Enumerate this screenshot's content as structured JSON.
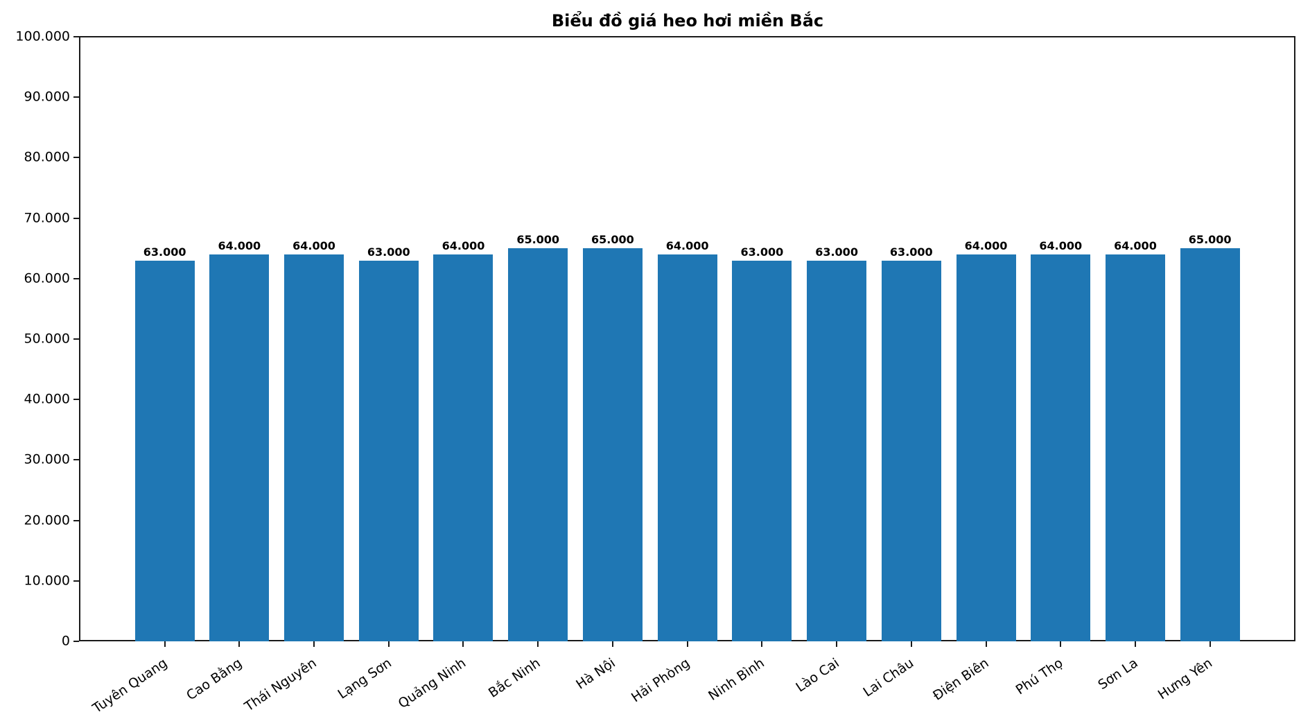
{
  "chart_data": {
    "type": "bar",
    "title": "Biểu đồ giá heo hơi miền Bắc",
    "categories": [
      "Tuyên Quang",
      "Cao Bằng",
      "Thái Nguyên",
      "Lạng Sơn",
      "Quảng Ninh",
      "Bắc Ninh",
      "Hà Nội",
      "Hải Phòng",
      "Ninh Bình",
      "Lào Cai",
      "Lai Châu",
      "Điện Biên",
      "Phú Thọ",
      "Sơn La",
      "Hưng Yên"
    ],
    "values": [
      63000,
      64000,
      64000,
      63000,
      64000,
      65000,
      65000,
      64000,
      63000,
      63000,
      63000,
      64000,
      64000,
      64000,
      65000
    ],
    "value_labels": [
      "63.000",
      "64.000",
      "64.000",
      "63.000",
      "64.000",
      "65.000",
      "65.000",
      "64.000",
      "63.000",
      "63.000",
      "63.000",
      "64.000",
      "64.000",
      "64.000",
      "65.000"
    ],
    "xlabel": "",
    "ylabel": "",
    "ylim": [
      0,
      100000
    ],
    "ytick_step": 10000,
    "ytick_labels": [
      "0",
      "10.000",
      "20.000",
      "30.000",
      "40.000",
      "50.000",
      "60.000",
      "70.000",
      "80.000",
      "90.000",
      "100.000"
    ],
    "grid": false,
    "legend": null,
    "bar_color": "#1f77b4",
    "axis_color": "#1a1a1a",
    "text_color": "#000000",
    "x_tick_rotation_deg": 34
  }
}
